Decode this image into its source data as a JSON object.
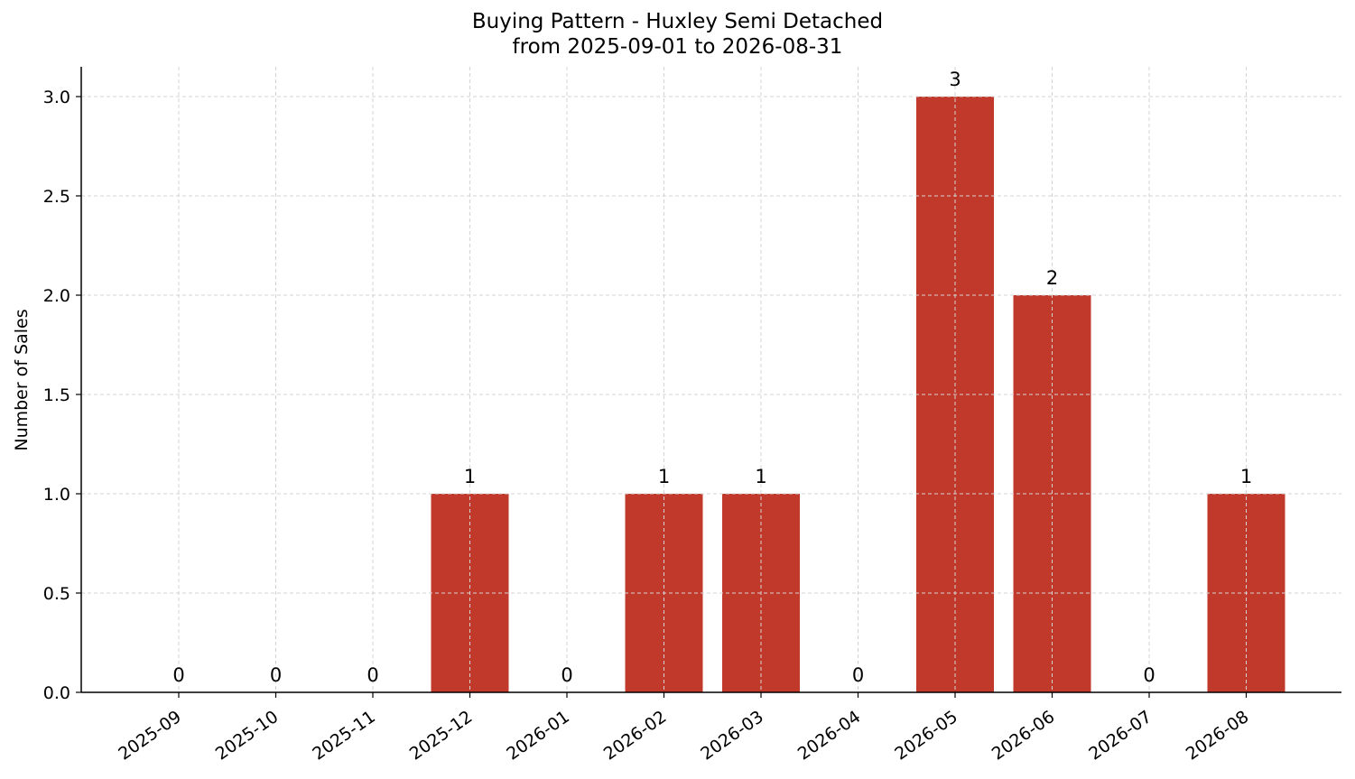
{
  "chart_data": {
    "type": "bar",
    "title": "Buying Pattern - Huxley Semi Detached",
    "subtitle": "from 2025-09-01 to 2026-08-31",
    "xlabel": "",
    "ylabel": "Number of Sales",
    "categories": [
      "2025-09",
      "2025-10",
      "2025-11",
      "2025-12",
      "2026-01",
      "2026-02",
      "2026-03",
      "2026-04",
      "2026-05",
      "2026-06",
      "2026-07",
      "2026-08"
    ],
    "values": [
      0,
      0,
      0,
      1,
      0,
      1,
      1,
      0,
      3,
      2,
      0,
      1
    ],
    "ylim": [
      0,
      3.15
    ],
    "yticks": [
      "0.0",
      "0.5",
      "1.0",
      "1.5",
      "2.0",
      "2.5",
      "3.0"
    ],
    "grid": true,
    "bar_color": "#c0392b",
    "data_labels": true
  }
}
